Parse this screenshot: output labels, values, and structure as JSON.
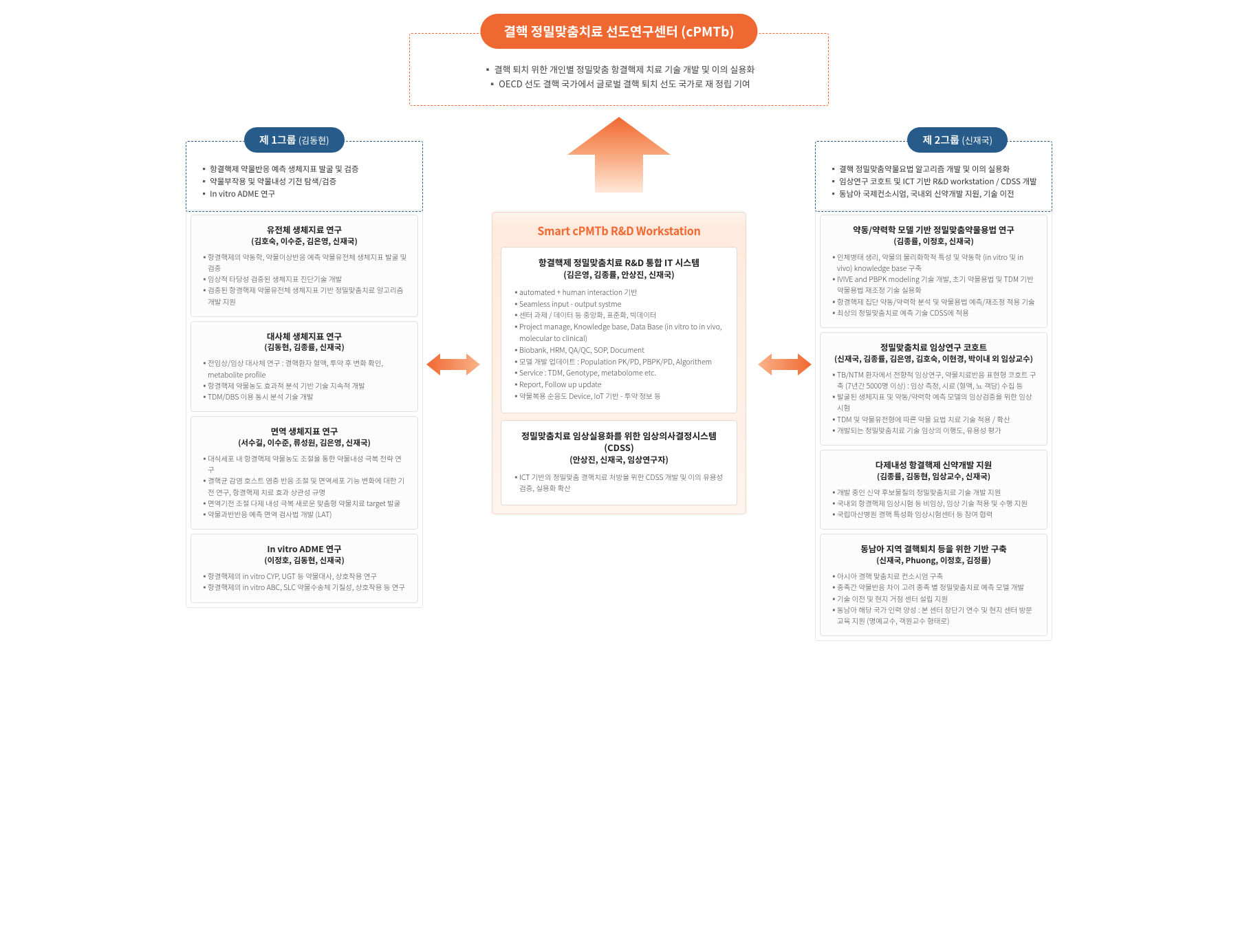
{
  "colors": {
    "orange": "#f06831",
    "orangeLight": "#fce0d0",
    "blue": "#275b89",
    "cardBorder": "#dde1e6",
    "text": "#333333"
  },
  "top": {
    "title": "결핵 정밀맞춤치료 선도연구센터 (cPMTb)",
    "items": [
      "결핵 퇴치 위한 개인별 정밀맞춤 항결핵제 치료 기술 개발 및 이의 실용화",
      "OECD 선도 결핵 국가에서 글로벌 결핵 퇴치 선도 국가로 재 정립 기여"
    ]
  },
  "group1": {
    "label": "제 1그룹",
    "lead": "(김동현)",
    "items": [
      "항결핵제 약물반응 예측 생체지표 발굴 및 검증",
      "약물부작용 및 약물내성 기전 탐색/검증",
      "In vitro ADME 연구"
    ]
  },
  "group2": {
    "label": "제 2그룹",
    "lead": "(신재국)",
    "items": [
      "결핵 정밀맞춤약물요법 알고리즘 개발 및 이의 실용화",
      "임상연구 코호트 및 ICT 기반 R&D workstation / CDSS 개발",
      "동남아 국제컨소시엄, 국내외 신약개발 지원, 기술 이전"
    ]
  },
  "left_cards": [
    {
      "title": "유전체 생체지료 연구",
      "people": "(김호숙, 이수준, 김은영, 신재국)",
      "items": [
        "항결핵제의 약동학, 약물이상반응 예측 약물유전체 생체지표 발굴 및 검증",
        "임상적 타당성 검증된 생체지표 진단기술 개발",
        "검증된 항결핵제 약물유전체 생체지표 기반 정밀맞춤치료 알고리즘 개발 지원"
      ]
    },
    {
      "title": "대사체 생체지표 연구",
      "people": "(김동현, 김종률, 신재국)",
      "items": [
        "전임상/임상 대사체 연구 : 결핵환자 혈액, 투약 후 변화 확인, metabolite profile",
        "항결핵제 약물농도 효과적 분석 기반 기술 지속적 개발",
        "TDM/DBS 이용 동시 분석 기술 개발"
      ]
    },
    {
      "title": "면역 생체지표 연구",
      "people": "(서수길, 이수준, 류성원, 김은영, 신재국)",
      "items": [
        "대식세포 내 항결핵제 약물농도 조절을 통한 약물내성 극복 전략 연구",
        "결핵균 감염 호스트 염증 반응 조절 및 면역세포 기능 변화에 대한 기전 연구, 항결핵제 치료 효과 상관성 규명",
        "면역기전 조절 다제 내성 극복 새로운 맞춤형 약물치료 target 발굴",
        "약물과반반응 예측 면역 검사법 개발 (LAT)"
      ]
    },
    {
      "title": "In vitro ADME 연구",
      "people": "(이정호, 김동현, 신재국)",
      "items": [
        "항결핵제의 in vitro CYP, UGT 등 약물대사, 상호작용 연구",
        "항결핵제의 in vitro ABC, SLC 약물수송체 기질성, 상호작용 등 연구"
      ]
    }
  ],
  "center": {
    "title": "Smart cPMTb R&D Workstation",
    "cards": [
      {
        "title": "항결핵제 정밀맞춤치료 R&D 통합 IT 시스템",
        "people": "(김은영, 김종률, 안상진, 신재국)",
        "items": [
          "automated + human interaction 기반",
          "Seamless input - output systme",
          "센터 과제 / 데이터 등 중앙화, 표준화, 빅데이터",
          "Project manage, Knowledge base, Data Base (in vitro to in vivo, molecular to clinical)",
          "Biobank, HRM, QA/QC, SOP, Document",
          "모델 개발 업데이트 : Population PK/PD, PBPK/PD, Algorithem",
          "Service : TDM, Genotype, metabolome etc.",
          "Report, Follow up update",
          "약물복용 순응도 Device, IoT 기반 - 투약 정보 등"
        ]
      },
      {
        "title": "정밀맞춤치료 임상실용화를 위한\n임상의사결정시스템 (CDSS)",
        "people": "(안상진, 신재국, 임상연구자)",
        "items": [
          "ICT 기반의 정밀맞춤 결핵치료 처방을 위한 CDSS 개발 및 이의 유용성 검증, 실용화 확산"
        ]
      }
    ]
  },
  "right_cards": [
    {
      "title": "약동/약력학 모델 기반 정밀맞춤약물용법 연구",
      "people": "(김종률, 이정호, 신재국)",
      "items": [
        "인체병태 생리, 약물의 물리화학적 특성 및 약동학 (in vitro 및 in vivo) knowledge base 구축",
        "IVIVE and PBPK modeling 기술 개발, 초기 약물용법 및 TDM 기반 약물용법 재조정 기술 실용화",
        "항결핵제 집단 약동/약력학 분석 및 약물용법 예측/재조정 적용 기술",
        "최상의 정밀맞춤치료 예측 기술 CDSS에 적용"
      ]
    },
    {
      "title": "정밀맞춤치료 임상연구 코호트",
      "people": "(신재국, 김종률, 김은영, 김호숙, 이현경, 박이내 외 임상교수)",
      "items": [
        "TB/NTM 환자에서 전향적 임상연구, 약물치료반응 표현형 코호트 구축 (7년간 5000명 이상) : 임상 측정, 시료 (혈액, 뇨 객담) 수집 등",
        "발굴된 생체지표 및 약동/약력학 예측 모델의 임상검증을 위한 임상시험",
        "TDM 및 약물유전형에 따른 약물 요법 치료 기술 적용 / 확산",
        "개발되는 정밀맞춤치료 기술 임상의 이행도, 유용성 평가"
      ]
    },
    {
      "title": "다제내성 항결핵제 신약개발 지원",
      "people": "(김종률, 김동현, 임상교수, 신재국)",
      "items": [
        "개발 중인 신약 후보물질의 정밀맞춤치료 기술 개발 지원",
        "국내외 항결핵제 임상시험 등 비임상, 임상 기술 적용 및 수행 지원",
        "국립마산병원 결핵 특성화 임상시험센터 등 참여 협력"
      ]
    },
    {
      "title": "동남아 지역 결핵퇴치 등을 위한 기반 구축",
      "people": "(신재국, Phuong, 이정호, 김정률)",
      "items": [
        "아시아 결핵 맞춤치료 컨소시엄 구축",
        "종족간 약물반응 차이 고려 종족 별 정밀맞춤치료 예측 모델 개발",
        "기술 이전 및 현지 거점 센터 설립 지원",
        "동남아 해당 국가 인력 양성 : 본 센터 장단기 연수 및 현지 센터 방문 교육 지원 (명예교수, 객원교수 형태로)"
      ]
    }
  ]
}
